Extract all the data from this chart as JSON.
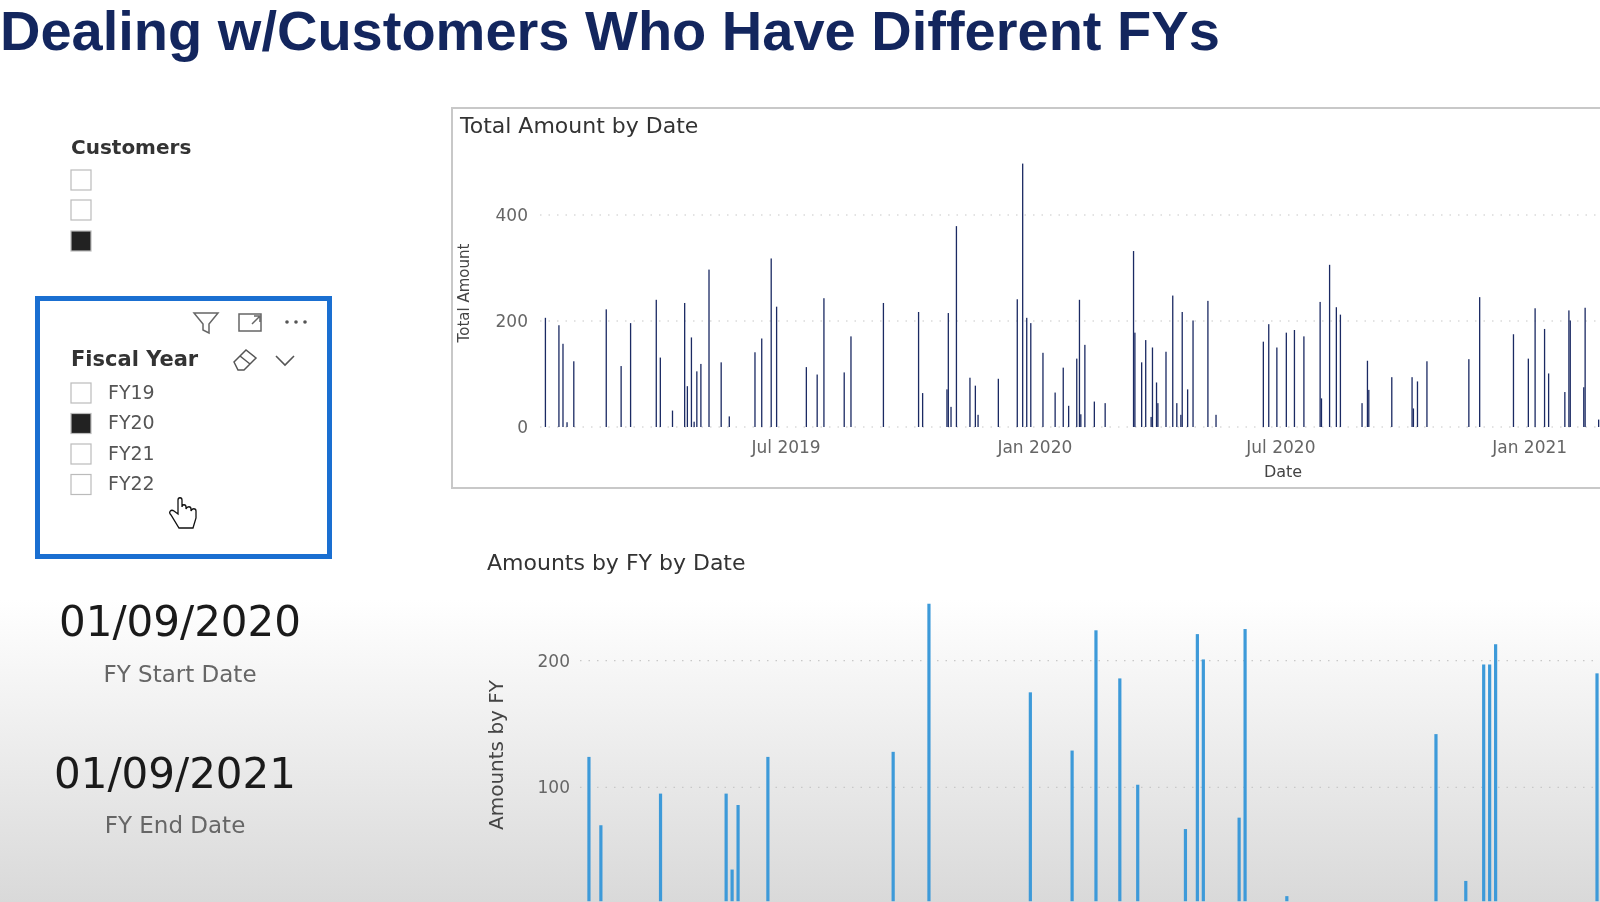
{
  "chart_data": [
    {
      "type": "other",
      "title": "Dealing w/Customers Who Have Different FYs",
      "annotations": [
        "Customers",
        "Fiscal Year",
        "FY19",
        "FY20",
        "FY21",
        "FY22",
        "01/09/2020",
        "FY Start Date",
        "01/09/2021",
        "FY End Date"
      ]
    },
    {
      "type": "bar",
      "title": "Total Amount by Date",
      "xlabel": "Date",
      "ylabel": "Total Amount",
      "color": "#1b2a63",
      "grid": "y",
      "xlim": [
        "2018-12-31",
        "2021-02-22"
      ],
      "ylim": [
        0,
        500
      ],
      "yticks": [
        0,
        200,
        400
      ],
      "xticks": [
        {
          "value": "2019-07-01",
          "label": "Jul 2019"
        },
        {
          "value": "2020-01-01",
          "label": "Jan 2020"
        },
        {
          "value": "2020-07-01",
          "label": "Jul 2020"
        },
        {
          "value": "2021-01-01",
          "label": "Jan 2021"
        }
      ],
      "x": [
        "2019-01-04",
        "2019-01-14",
        "2019-01-17",
        "2019-01-20",
        "2019-01-25",
        "2019-02-18",
        "2019-03-01",
        "2019-03-08",
        "2019-03-27",
        "2019-03-30",
        "2019-04-08",
        "2019-04-17",
        "2019-04-19",
        "2019-04-22",
        "2019-04-24",
        "2019-04-26",
        "2019-04-29",
        "2019-05-05",
        "2019-05-14",
        "2019-05-20",
        "2019-06-08",
        "2019-06-13",
        "2019-06-20",
        "2019-06-24",
        "2019-07-16",
        "2019-07-24",
        "2019-07-29",
        "2019-08-13",
        "2019-08-18",
        "2019-09-11",
        "2019-10-07",
        "2019-10-10",
        "2019-10-28",
        "2019-10-29",
        "2019-10-31",
        "2019-11-04",
        "2019-11-14",
        "2019-11-18",
        "2019-11-20",
        "2019-12-05",
        "2019-12-19",
        "2019-12-23",
        "2019-12-26",
        "2019-12-29",
        "2020-01-07",
        "2020-01-16",
        "2020-01-22",
        "2020-01-26",
        "2020-02-01",
        "2020-02-03",
        "2020-02-04",
        "2020-02-07",
        "2020-02-14",
        "2020-02-22",
        "2020-03-14",
        "2020-03-15",
        "2020-03-20",
        "2020-03-23",
        "2020-03-27",
        "2020-03-28",
        "2020-03-31",
        "2020-04-01",
        "2020-04-07",
        "2020-04-12",
        "2020-04-15",
        "2020-04-18",
        "2020-04-19",
        "2020-04-23",
        "2020-04-27",
        "2020-05-08",
        "2020-05-14",
        "2020-06-18",
        "2020-06-22",
        "2020-06-28",
        "2020-07-05",
        "2020-07-11",
        "2020-07-18",
        "2020-07-30",
        "2020-07-31",
        "2020-08-06",
        "2020-08-11",
        "2020-08-14",
        "2020-08-30",
        "2020-09-03",
        "2020-09-04",
        "2020-09-21",
        "2020-10-06",
        "2020-10-07",
        "2020-10-10",
        "2020-10-17",
        "2020-11-17",
        "2020-11-25",
        "2020-12-20",
        "2020-12-31",
        "2021-01-05",
        "2021-01-12",
        "2021-01-15",
        "2021-01-27",
        "2021-01-30",
        "2021-01-31",
        "2021-02-10",
        "2021-02-11",
        "2021-02-21"
      ],
      "values": [
        206,
        192,
        157,
        9,
        124,
        222,
        115,
        196,
        240,
        131,
        31,
        234,
        77,
        169,
        10,
        105,
        119,
        297,
        122,
        20,
        141,
        167,
        318,
        227,
        113,
        99,
        243,
        103,
        171,
        234,
        217,
        64,
        71,
        215,
        38,
        379,
        93,
        78,
        23,
        91,
        241,
        497,
        206,
        196,
        140,
        65,
        112,
        40,
        129,
        240,
        24,
        155,
        48,
        45,
        332,
        178,
        122,
        164,
        19,
        150,
        84,
        45,
        142,
        248,
        45,
        23,
        217,
        71,
        201,
        238,
        23,
        161,
        194,
        150,
        178,
        183,
        171,
        236,
        54,
        306,
        226,
        212,
        45,
        125,
        70,
        94,
        94,
        35,
        86,
        124,
        128,
        245,
        175,
        129,
        224,
        185,
        101,
        66,
        220,
        201,
        75,
        225,
        14
      ]
    },
    {
      "type": "bar",
      "title": "Amounts by FY by Date",
      "ylabel": "Amounts by FY",
      "color": "#3d9ad9",
      "grid": "y",
      "tick_labels": "y",
      "ylim": [
        10,
        250
      ],
      "yticks": [
        100,
        200
      ],
      "categories": [
        null,
        null,
        null,
        null,
        null,
        null,
        null,
        null,
        null,
        null,
        null,
        null,
        null,
        null,
        null,
        null,
        null,
        null,
        null,
        null,
        null,
        null,
        null,
        null,
        null,
        null,
        null,
        null,
        null,
        null,
        null,
        null,
        null,
        null,
        null,
        null,
        null,
        null,
        null,
        null,
        null,
        null,
        null,
        null,
        null,
        null,
        null,
        null,
        null,
        null,
        null,
        null,
        null,
        null,
        null,
        null,
        null,
        null,
        null,
        null,
        null,
        null,
        null,
        null,
        null,
        null,
        null,
        null,
        null,
        null,
        null,
        null,
        null,
        null,
        null,
        null,
        null,
        null,
        null,
        null,
        null,
        null,
        null,
        null,
        null,
        null,
        null,
        null,
        null,
        null,
        null,
        null,
        null,
        null,
        null,
        null,
        null,
        null,
        null,
        null,
        null,
        null,
        null,
        null,
        null,
        null,
        null,
        null,
        null,
        null,
        null,
        null,
        null,
        null,
        null,
        null,
        null,
        null,
        null,
        null,
        null,
        null,
        null,
        null,
        null,
        null,
        null,
        null,
        null,
        null,
        null,
        null,
        null,
        null,
        null,
        null,
        null,
        null,
        null,
        null,
        null,
        null,
        null,
        null,
        null,
        null,
        null,
        null,
        null,
        null,
        null,
        null,
        null,
        null,
        null,
        null,
        null,
        null,
        null,
        null,
        null,
        null,
        null,
        null,
        null,
        null,
        null,
        null,
        null,
        null,
        null
      ],
      "values": [
        null,
        124,
        null,
        70,
        null,
        null,
        null,
        null,
        null,
        null,
        null,
        null,
        null,
        95,
        null,
        null,
        null,
        null,
        null,
        null,
        null,
        null,
        null,
        null,
        95,
        35,
        86,
        null,
        null,
        null,
        null,
        124,
        null,
        null,
        null,
        null,
        null,
        null,
        null,
        null,
        null,
        null,
        null,
        null,
        null,
        null,
        null,
        null,
        null,
        null,
        null,
        null,
        128,
        null,
        null,
        null,
        null,
        null,
        245,
        null,
        null,
        null,
        null,
        null,
        null,
        null,
        null,
        null,
        null,
        null,
        null,
        null,
        null,
        null,
        null,
        175,
        null,
        null,
        null,
        null,
        null,
        null,
        129,
        null,
        null,
        null,
        224,
        null,
        null,
        null,
        186,
        null,
        null,
        102,
        null,
        null,
        null,
        null,
        null,
        null,
        null,
        67,
        null,
        221,
        201,
        null,
        null,
        null,
        null,
        null,
        76,
        225,
        null,
        null,
        null,
        null,
        null,
        null,
        14,
        null,
        null,
        null,
        null,
        null,
        null,
        null,
        null,
        null,
        null,
        null,
        null,
        null,
        null,
        null,
        null,
        null,
        null,
        null,
        null,
        null,
        null,
        null,
        null,
        142,
        null,
        null,
        null,
        null,
        26,
        null,
        null,
        197,
        197,
        213,
        null,
        null,
        null,
        null,
        null,
        null,
        null,
        null,
        null,
        null,
        null,
        null,
        null,
        null,
        null,
        null,
        190
      ]
    }
  ]
}
